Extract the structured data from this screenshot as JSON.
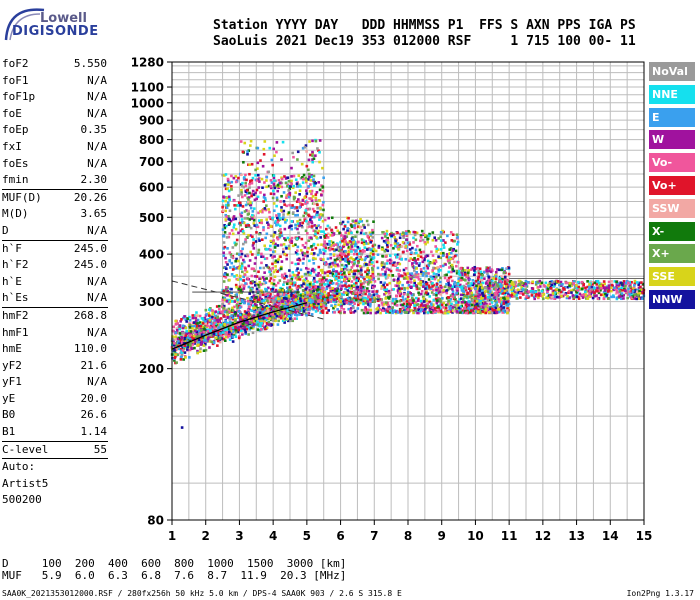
{
  "logo": {
    "line1": "Lowell",
    "line2": "DIGISONDE"
  },
  "header": {
    "line1": "Station YYYY DAY   DDD HHMMSS P1  FFS S AXN PPS IGA PS",
    "line2": "SaoLuis 2021 Dec19 353 012000 RSF     1 715 100 00- 11"
  },
  "params_a": [
    {
      "k": "foF2",
      "v": "5.550"
    },
    {
      "k": "foF1",
      "v": "N/A"
    },
    {
      "k": "foF1p",
      "v": "N/A"
    },
    {
      "k": "foE",
      "v": "N/A"
    },
    {
      "k": "foEp",
      "v": "0.35"
    },
    {
      "k": "fxI",
      "v": "N/A"
    },
    {
      "k": "foEs",
      "v": "N/A"
    },
    {
      "k": "fmin",
      "v": "2.30"
    }
  ],
  "params_b": [
    {
      "k": "MUF(D)",
      "v": "20.26"
    },
    {
      "k": "M(D)",
      "v": "3.65"
    },
    {
      "k": "D",
      "v": "N/A"
    }
  ],
  "params_c": [
    {
      "k": "h`F",
      "v": "245.0"
    },
    {
      "k": "h`F2",
      "v": "245.0"
    },
    {
      "k": "h`E",
      "v": "N/A"
    },
    {
      "k": "h`Es",
      "v": "N/A"
    }
  ],
  "params_d": [
    {
      "k": "hmF2",
      "v": "268.8"
    },
    {
      "k": "hmF1",
      "v": "N/A"
    },
    {
      "k": "hmE",
      "v": "110.0"
    },
    {
      "k": "yF2",
      "v": "21.6"
    },
    {
      "k": "yF1",
      "v": "N/A"
    },
    {
      "k": "yE",
      "v": "20.0"
    },
    {
      "k": "B0",
      "v": "26.6"
    },
    {
      "k": "B1",
      "v": "1.14"
    }
  ],
  "clevel": {
    "k": "C-level",
    "v": "55"
  },
  "auto": [
    "Auto:",
    "Artist5",
    "500200"
  ],
  "chart_data": {
    "type": "scatter",
    "xlim": [
      1,
      15
    ],
    "ylim": [
      80,
      1280
    ],
    "xticks": [
      1,
      2,
      3,
      4,
      5,
      6,
      7,
      8,
      9,
      10,
      11,
      12,
      13,
      14,
      15
    ],
    "yticks": [
      80,
      200,
      300,
      400,
      500,
      600,
      700,
      800,
      900,
      1000,
      1100,
      1280
    ],
    "grid": true,
    "y_scale": "log",
    "trace": [
      [
        1.0,
        225
      ],
      [
        2.0,
        245
      ],
      [
        3.0,
        265
      ],
      [
        4.0,
        282
      ],
      [
        5.0,
        298
      ]
    ]
  },
  "legend": [
    {
      "label": "NoVal",
      "color": "#9a9a9a"
    },
    {
      "label": "NNE",
      "color": "#15e0ee"
    },
    {
      "label": "E",
      "color": "#3aa0ee"
    },
    {
      "label": "W",
      "color": "#a0129e"
    },
    {
      "label": "Vo-",
      "color": "#f0569c"
    },
    {
      "label": "Vo+",
      "color": "#e0142a"
    },
    {
      "label": "SSW",
      "color": "#f2a8a4"
    },
    {
      "label": "X-",
      "color": "#117a0c"
    },
    {
      "label": "X+",
      "color": "#6aa84c"
    },
    {
      "label": "SSE",
      "color": "#d8d41a"
    },
    {
      "label": "NNW",
      "color": "#14129e"
    }
  ],
  "footer": {
    "dline": "D     100  200  400  600  800  1000  1500  3000 [km]",
    "mufline": "MUF   5.9  6.0  6.3  6.8  7.6  8.7  11.9  20.3 [MHz]",
    "fname": "SAA0K_2021353012000.RSF / 280fx256h 50 kHz 5.0 km / DPS-4 SAA0K 903 / 2.6 S 315.8 E",
    "version": "Ion2Png 1.3.17"
  }
}
